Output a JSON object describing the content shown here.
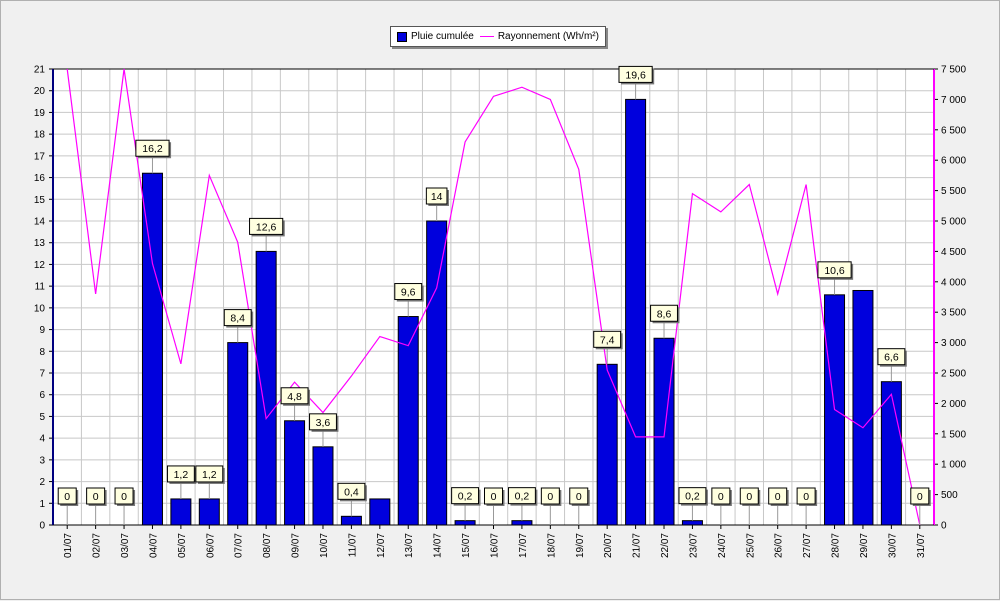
{
  "chart_data": {
    "type": "bar",
    "categories": [
      "01/07",
      "02/07",
      "03/07",
      "04/07",
      "05/07",
      "06/07",
      "07/07",
      "08/07",
      "09/07",
      "10/07",
      "11/07",
      "12/07",
      "13/07",
      "14/07",
      "15/07",
      "16/07",
      "17/07",
      "18/07",
      "19/07",
      "20/07",
      "21/07",
      "22/07",
      "23/07",
      "24/07",
      "25/07",
      "26/07",
      "27/07",
      "28/07",
      "29/07",
      "30/07",
      "31/07"
    ],
    "series": [
      {
        "name": "Pluie cumulée",
        "type": "bar",
        "color": "#0000dd",
        "values": [
          0,
          0,
          0,
          16.2,
          1.2,
          1.2,
          8.4,
          12.6,
          4.8,
          3.6,
          0.4,
          1.2,
          9.6,
          14,
          0.2,
          0,
          0.2,
          0,
          0,
          7.4,
          19.6,
          8.6,
          0.2,
          0,
          0,
          0,
          0,
          10.6,
          10.8,
          6.6,
          0
        ],
        "data_labels": [
          "0",
          "0",
          "0",
          "16,2",
          "1,2",
          "1,2",
          "8,4",
          "12,6",
          "4,8",
          "3,6",
          "0,4",
          null,
          "9,6",
          "14",
          "0,2",
          "0",
          "0,2",
          "0",
          "0",
          "7,4",
          "19,6",
          "8,6",
          "0,2",
          "0",
          "0",
          "0",
          "0",
          "10,6",
          null,
          "6,6",
          "0"
        ]
      },
      {
        "name": "Rayonnement (Wh/m²)",
        "type": "line",
        "color": "#ff00ff",
        "axis": "right",
        "values": [
          7500,
          3800,
          7500,
          4300,
          2650,
          5750,
          4650,
          1750,
          2350,
          1850,
          2450,
          3100,
          2950,
          3900,
          6300,
          7050,
          7200,
          7000,
          5850,
          2550,
          1450,
          1450,
          5450,
          5150,
          5600,
          3800,
          5600,
          1900,
          1600,
          2150,
          0
        ]
      }
    ],
    "y_left": {
      "ylim": [
        0,
        21
      ],
      "ticks": [
        "0",
        "1",
        "2",
        "3",
        "4",
        "5",
        "6",
        "7",
        "8",
        "9",
        "10",
        "11",
        "12",
        "13",
        "14",
        "15",
        "16",
        "17",
        "18",
        "19",
        "20",
        "21"
      ]
    },
    "y_right": {
      "ylim": [
        0,
        7500
      ],
      "ticks": [
        "0",
        "500",
        "1 000",
        "1 500",
        "2 000",
        "2 500",
        "3 000",
        "3 500",
        "4 000",
        "4 500",
        "5 000",
        "5 500",
        "6 000",
        "6 500",
        "7 000",
        "7 500"
      ]
    },
    "grid": true,
    "legend_position": "top-center"
  }
}
